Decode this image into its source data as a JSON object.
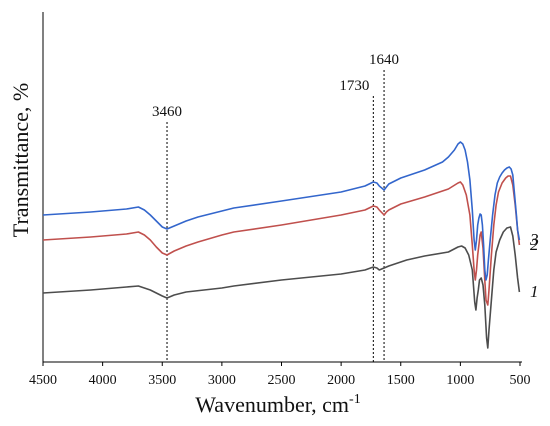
{
  "chart_data": {
    "type": "line",
    "title": "",
    "xlabel": "Wavenumber, cm",
    "xlabel_superscript": "-1",
    "ylabel": "Transmittance, %",
    "xlim": [
      4500,
      500
    ],
    "x_reversed": true,
    "y_ticks_shown": false,
    "grid": false,
    "x_ticks": [
      4500,
      4000,
      3500,
      3000,
      2500,
      2000,
      1500,
      1000,
      500
    ],
    "x_tick_labels": [
      "4500",
      "4000",
      "3500",
      "3000",
      "2500",
      "2000",
      "1500",
      "1000",
      "500"
    ],
    "annotations": [
      {
        "x": 3460,
        "label": "3460"
      },
      {
        "x": 1730,
        "label": "1730"
      },
      {
        "x": 1640,
        "label": "1640"
      }
    ],
    "series": [
      {
        "name": "1",
        "color": "#4d4d4d",
        "points": [
          [
            4500,
            93
          ],
          [
            4100,
            90
          ],
          [
            3800,
            87
          ],
          [
            3700,
            86
          ],
          [
            3600,
            90
          ],
          [
            3500,
            96
          ],
          [
            3460,
            98
          ],
          [
            3400,
            95
          ],
          [
            3300,
            92
          ],
          [
            3000,
            88
          ],
          [
            2900,
            86
          ],
          [
            2500,
            80
          ],
          [
            2000,
            74
          ],
          [
            1800,
            70
          ],
          [
            1730,
            67
          ],
          [
            1700,
            68
          ],
          [
            1680,
            70
          ],
          [
            1640,
            68
          ],
          [
            1600,
            66
          ],
          [
            1450,
            60
          ],
          [
            1300,
            56
          ],
          [
            1100,
            52
          ],
          [
            1020,
            47
          ],
          [
            990,
            46
          ],
          [
            960,
            48
          ],
          [
            930,
            55
          ],
          [
            900,
            70
          ],
          [
            880,
            102
          ],
          [
            870,
            110
          ],
          [
            860,
            98
          ],
          [
            850,
            90
          ],
          [
            840,
            80
          ],
          [
            825,
            78
          ],
          [
            810,
            85
          ],
          [
            795,
            105
          ],
          [
            780,
            138
          ],
          [
            770,
            148
          ],
          [
            760,
            130
          ],
          [
            740,
            100
          ],
          [
            720,
            70
          ],
          [
            700,
            52
          ],
          [
            670,
            40
          ],
          [
            640,
            32
          ],
          [
            610,
            28
          ],
          [
            580,
            27
          ],
          [
            560,
            36
          ],
          [
            540,
            55
          ],
          [
            520,
            78
          ],
          [
            505,
            92
          ]
        ]
      },
      {
        "name": "2",
        "color": "#c0504d",
        "points": [
          [
            4500,
            40
          ],
          [
            4100,
            37
          ],
          [
            3800,
            34
          ],
          [
            3700,
            32
          ],
          [
            3650,
            35
          ],
          [
            3600,
            40
          ],
          [
            3550,
            47
          ],
          [
            3500,
            53
          ],
          [
            3460,
            55
          ],
          [
            3400,
            51
          ],
          [
            3300,
            46
          ],
          [
            3200,
            42
          ],
          [
            3000,
            35
          ],
          [
            2900,
            32
          ],
          [
            2500,
            25
          ],
          [
            2000,
            15
          ],
          [
            1800,
            10
          ],
          [
            1730,
            6
          ],
          [
            1700,
            7
          ],
          [
            1680,
            10
          ],
          [
            1640,
            15
          ],
          [
            1620,
            12
          ],
          [
            1600,
            10
          ],
          [
            1500,
            4
          ],
          [
            1300,
            -3
          ],
          [
            1100,
            -11
          ],
          [
            1020,
            -17
          ],
          [
            1000,
            -18
          ],
          [
            980,
            -15
          ],
          [
            950,
            -5
          ],
          [
            920,
            15
          ],
          [
            900,
            45
          ],
          [
            885,
            70
          ],
          [
            875,
            80
          ],
          [
            865,
            70
          ],
          [
            855,
            55
          ],
          [
            845,
            45
          ],
          [
            835,
            35
          ],
          [
            825,
            32
          ],
          [
            810,
            48
          ],
          [
            795,
            80
          ],
          [
            785,
            100
          ],
          [
            770,
            105
          ],
          [
            760,
            90
          ],
          [
            740,
            55
          ],
          [
            720,
            25
          ],
          [
            700,
            5
          ],
          [
            680,
            -8
          ],
          [
            650,
            -17
          ],
          [
            620,
            -22
          ],
          [
            600,
            -24
          ],
          [
            580,
            -24
          ],
          [
            560,
            -15
          ],
          [
            540,
            5
          ],
          [
            520,
            30
          ],
          [
            505,
            45
          ]
        ]
      },
      {
        "name": "3",
        "color": "#3366cc",
        "points": [
          [
            4500,
            15
          ],
          [
            4100,
            12
          ],
          [
            3800,
            9
          ],
          [
            3700,
            7
          ],
          [
            3650,
            10
          ],
          [
            3600,
            15
          ],
          [
            3550,
            21
          ],
          [
            3500,
            27
          ],
          [
            3460,
            29
          ],
          [
            3400,
            26
          ],
          [
            3300,
            21
          ],
          [
            3200,
            17
          ],
          [
            3000,
            11
          ],
          [
            2900,
            8
          ],
          [
            2500,
            1
          ],
          [
            2000,
            -8
          ],
          [
            1800,
            -14
          ],
          [
            1730,
            -18
          ],
          [
            1700,
            -17
          ],
          [
            1680,
            -14
          ],
          [
            1640,
            -10
          ],
          [
            1620,
            -13
          ],
          [
            1600,
            -16
          ],
          [
            1500,
            -22
          ],
          [
            1300,
            -30
          ],
          [
            1150,
            -38
          ],
          [
            1100,
            -43
          ],
          [
            1050,
            -50
          ],
          [
            1020,
            -56
          ],
          [
            1000,
            -58
          ],
          [
            980,
            -56
          ],
          [
            960,
            -50
          ],
          [
            940,
            -38
          ],
          [
            920,
            -20
          ],
          [
            900,
            10
          ],
          [
            885,
            40
          ],
          [
            875,
            50
          ],
          [
            865,
            40
          ],
          [
            855,
            25
          ],
          [
            845,
            18
          ],
          [
            835,
            14
          ],
          [
            825,
            15
          ],
          [
            815,
            25
          ],
          [
            805,
            45
          ],
          [
            795,
            70
          ],
          [
            785,
            80
          ],
          [
            775,
            75
          ],
          [
            765,
            60
          ],
          [
            750,
            40
          ],
          [
            730,
            15
          ],
          [
            710,
            -5
          ],
          [
            690,
            -17
          ],
          [
            670,
            -23
          ],
          [
            650,
            -27
          ],
          [
            630,
            -30
          ],
          [
            610,
            -32
          ],
          [
            590,
            -33
          ],
          [
            575,
            -31
          ],
          [
            560,
            -25
          ],
          [
            545,
            -5
          ],
          [
            530,
            15
          ],
          [
            520,
            30
          ],
          [
            505,
            40
          ]
        ]
      }
    ]
  }
}
